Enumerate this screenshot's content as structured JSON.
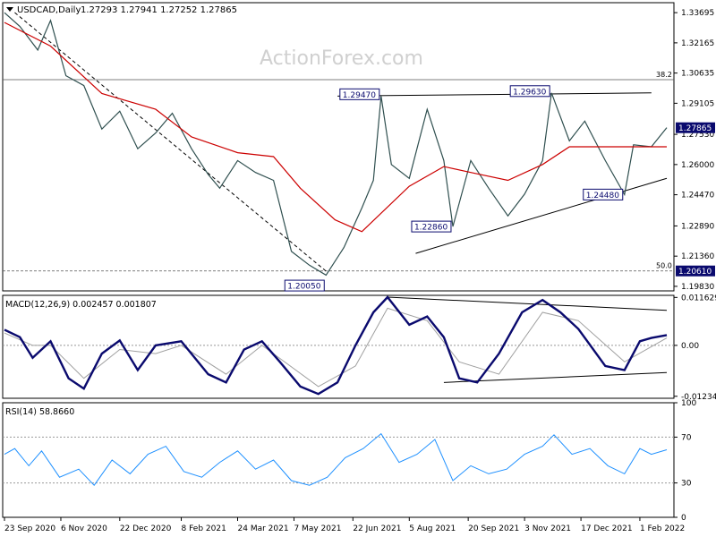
{
  "header": {
    "symbol": "USDCAD,Daily",
    "ohlc": "1.27293  1.27941  1.27252  1.27865"
  },
  "watermark": "ActionForex.com",
  "chart_data": [
    {
      "type": "candlestick",
      "symbol": "USDCAD",
      "timeframe": "Daily",
      "open": 1.27293,
      "high": 1.27941,
      "low": 1.27252,
      "close": 1.27865,
      "ylim": [
        1.196,
        1.342
      ],
      "yticks": [
        "1.33695",
        "1.32165",
        "1.30635",
        "1.29105",
        "1.27530",
        "1.26000",
        "1.24470",
        "1.22890",
        "1.21360",
        "1.19830"
      ],
      "yticks_values": [
        1.33695,
        1.32165,
        1.30635,
        1.29105,
        1.2753,
        1.26,
        1.2447,
        1.2289,
        1.2136,
        1.1983
      ],
      "fib_levels": [
        {
          "label": "38.2",
          "value": 1.303
        },
        {
          "label": "50.0",
          "value": 1.2061
        }
      ],
      "current_price_label": "1.27865",
      "current_price": 1.27865,
      "level_label": "1.20610",
      "level_value": 1.2061,
      "annotations": [
        {
          "label": "1.29470",
          "value": 1.2947,
          "date": "2021-07-14"
        },
        {
          "label": "1.29630",
          "value": 1.2963,
          "date": "2021-11-24"
        },
        {
          "label": "1.22860",
          "value": 1.2286,
          "date": "2021-09-08"
        },
        {
          "label": "1.24480",
          "value": 1.2448,
          "date": "2022-01-20"
        },
        {
          "label": "1.20050",
          "value": 1.2005,
          "date": "2021-06-01"
        }
      ],
      "close_path": [
        [
          "2020-09-23",
          1.3369
        ],
        [
          "2020-10-05",
          1.33
        ],
        [
          "2020-10-19",
          1.318
        ],
        [
          "2020-10-29",
          1.333
        ],
        [
          "2020-11-10",
          1.305
        ],
        [
          "2020-11-24",
          1.3
        ],
        [
          "2020-12-08",
          1.278
        ],
        [
          "2020-12-22",
          1.287
        ],
        [
          "2021-01-05",
          1.268
        ],
        [
          "2021-01-19",
          1.276
        ],
        [
          "2021-02-01",
          1.286
        ],
        [
          "2021-02-16",
          1.268
        ],
        [
          "2021-03-01",
          1.255
        ],
        [
          "2021-03-10",
          1.248
        ],
        [
          "2021-03-24",
          1.262
        ],
        [
          "2021-04-07",
          1.256
        ],
        [
          "2021-04-21",
          1.252
        ],
        [
          "2021-05-05",
          1.216
        ],
        [
          "2021-05-19",
          1.209
        ],
        [
          "2021-06-01",
          1.204
        ],
        [
          "2021-06-15",
          1.218
        ],
        [
          "2021-06-29",
          1.238
        ],
        [
          "2021-07-08",
          1.252
        ],
        [
          "2021-07-14",
          1.2947
        ],
        [
          "2021-07-22",
          1.26
        ],
        [
          "2021-08-05",
          1.253
        ],
        [
          "2021-08-19",
          1.288
        ],
        [
          "2021-09-01",
          1.262
        ],
        [
          "2021-09-08",
          1.2286
        ],
        [
          "2021-09-22",
          1.262
        ],
        [
          "2021-10-06",
          1.248
        ],
        [
          "2021-10-21",
          1.234
        ],
        [
          "2021-11-03",
          1.245
        ],
        [
          "2021-11-17",
          1.262
        ],
        [
          "2021-11-24",
          1.2963
        ],
        [
          "2021-12-08",
          1.272
        ],
        [
          "2021-12-20",
          1.282
        ],
        [
          "2022-01-05",
          1.262
        ],
        [
          "2022-01-20",
          1.2448
        ],
        [
          "2022-01-27",
          1.27
        ],
        [
          "2022-02-10",
          1.269
        ],
        [
          "2022-02-22",
          1.2787
        ]
      ],
      "ma_path": [
        [
          "2020-09-23",
          1.332
        ],
        [
          "2020-10-29",
          1.32
        ],
        [
          "2020-12-08",
          1.296
        ],
        [
          "2021-01-19",
          1.288
        ],
        [
          "2021-02-16",
          1.274
        ],
        [
          "2021-03-24",
          1.266
        ],
        [
          "2021-04-21",
          1.264
        ],
        [
          "2021-05-12",
          1.248
        ],
        [
          "2021-06-08",
          1.232
        ],
        [
          "2021-06-29",
          1.226
        ],
        [
          "2021-08-05",
          1.249
        ],
        [
          "2021-09-01",
          1.259
        ],
        [
          "2021-09-22",
          1.256
        ],
        [
          "2021-10-21",
          1.252
        ],
        [
          "2021-11-17",
          1.26
        ],
        [
          "2021-12-08",
          1.269
        ],
        [
          "2022-01-05",
          1.269
        ],
        [
          "2022-02-22",
          1.269
        ]
      ],
      "trendlines": [
        {
          "from": [
            "2020-10-01",
            1.337
          ],
          "to": [
            "2021-06-01",
            1.206
          ],
          "style": "dashed"
        },
        {
          "from": [
            "2021-06-10",
            1.2947
          ],
          "to": [
            "2022-02-10",
            1.2963
          ],
          "style": "solid"
        },
        {
          "from": [
            "2021-08-10",
            1.215
          ],
          "to": [
            "2022-02-22",
            1.253
          ],
          "style": "solid"
        }
      ]
    },
    {
      "type": "line",
      "title": "MACD(12,26,9) 0.002457 0.001807",
      "ylim": [
        -0.0124,
        0.0117
      ],
      "yticks": [
        "0.011629",
        "0.00",
        "-0.012348"
      ],
      "yticks_values": [
        0.011629,
        0.0,
        -0.012348
      ],
      "series": [
        {
          "name": "MACD",
          "values": [
            [
              "2020-09-23",
              0.0038
            ],
            [
              "2020-10-05",
              0.002
            ],
            [
              "2020-10-15",
              -0.003
            ],
            [
              "2020-10-29",
              0.001
            ],
            [
              "2020-11-12",
              -0.008
            ],
            [
              "2020-11-24",
              -0.0105
            ],
            [
              "2020-12-08",
              -0.002
            ],
            [
              "2020-12-22",
              0.0012
            ],
            [
              "2021-01-05",
              -0.006
            ],
            [
              "2021-01-19",
              0.0
            ],
            [
              "2021-02-08",
              0.001
            ],
            [
              "2021-03-01",
              -0.007
            ],
            [
              "2021-03-15",
              -0.009
            ],
            [
              "2021-03-29",
              -0.001
            ],
            [
              "2021-04-12",
              0.001
            ],
            [
              "2021-04-26",
              -0.004
            ],
            [
              "2021-05-12",
              -0.01
            ],
            [
              "2021-05-26",
              -0.0118
            ],
            [
              "2021-06-10",
              -0.009
            ],
            [
              "2021-06-24",
              0.0
            ],
            [
              "2021-07-08",
              0.008
            ],
            [
              "2021-07-19",
              0.0117
            ],
            [
              "2021-08-05",
              0.005
            ],
            [
              "2021-08-19",
              0.007
            ],
            [
              "2021-09-01",
              0.002
            ],
            [
              "2021-09-13",
              -0.008
            ],
            [
              "2021-09-27",
              -0.009
            ],
            [
              "2021-10-14",
              -0.002
            ],
            [
              "2021-11-01",
              0.008
            ],
            [
              "2021-11-17",
              0.011
            ],
            [
              "2021-12-01",
              0.008
            ],
            [
              "2021-12-15",
              0.004
            ],
            [
              "2022-01-05",
              -0.005
            ],
            [
              "2022-01-20",
              -0.006
            ],
            [
              "2022-02-01",
              0.001
            ],
            [
              "2022-02-10",
              0.0018
            ],
            [
              "2022-02-22",
              0.0025
            ]
          ]
        },
        {
          "name": "Signal",
          "values": [
            [
              "2020-09-23",
              0.003
            ],
            [
              "2020-10-15",
              0.0
            ],
            [
              "2020-10-29",
              0.0
            ],
            [
              "2020-11-24",
              -0.008
            ],
            [
              "2020-12-22",
              -0.001
            ],
            [
              "2021-01-19",
              -0.002
            ],
            [
              "2021-02-08",
              0.0
            ],
            [
              "2021-03-15",
              -0.007
            ],
            [
              "2021-04-12",
              0.0
            ],
            [
              "2021-05-26",
              -0.01
            ],
            [
              "2021-06-24",
              -0.005
            ],
            [
              "2021-07-19",
              0.009
            ],
            [
              "2021-08-19",
              0.006
            ],
            [
              "2021-09-13",
              -0.004
            ],
            [
              "2021-10-14",
              -0.007
            ],
            [
              "2021-11-17",
              0.008
            ],
            [
              "2021-12-15",
              0.006
            ],
            [
              "2022-01-20",
              -0.004
            ],
            [
              "2022-02-22",
              0.0018
            ]
          ]
        }
      ],
      "trendlines": [
        {
          "from": [
            "2021-07-19",
            0.0117
          ],
          "to": [
            "2022-02-22",
            0.0085
          ]
        },
        {
          "from": [
            "2021-09-01",
            -0.009
          ],
          "to": [
            "2022-02-22",
            -0.0066
          ]
        }
      ]
    },
    {
      "type": "line",
      "title": "RSI(14) 58.8660",
      "ylim": [
        0,
        100
      ],
      "yticks": [
        "100",
        "70",
        "30",
        "0"
      ],
      "yticks_values": [
        100,
        70,
        30,
        0
      ],
      "levels": [
        70,
        30
      ],
      "series": [
        {
          "name": "RSI",
          "values": [
            [
              "2020-09-23",
              55
            ],
            [
              "2020-10-01",
              60
            ],
            [
              "2020-10-12",
              45
            ],
            [
              "2020-10-22",
              58
            ],
            [
              "2020-11-05",
              35
            ],
            [
              "2020-11-20",
              42
            ],
            [
              "2020-12-02",
              28
            ],
            [
              "2020-12-16",
              50
            ],
            [
              "2020-12-30",
              38
            ],
            [
              "2021-01-13",
              55
            ],
            [
              "2021-01-27",
              62
            ],
            [
              "2021-02-10",
              40
            ],
            [
              "2021-02-24",
              35
            ],
            [
              "2021-03-10",
              48
            ],
            [
              "2021-03-24",
              58
            ],
            [
              "2021-04-07",
              42
            ],
            [
              "2021-04-21",
              50
            ],
            [
              "2021-05-05",
              32
            ],
            [
              "2021-05-19",
              28
            ],
            [
              "2021-06-02",
              35
            ],
            [
              "2021-06-16",
              52
            ],
            [
              "2021-06-30",
              60
            ],
            [
              "2021-07-14",
              73
            ],
            [
              "2021-07-28",
              48
            ],
            [
              "2021-08-11",
              55
            ],
            [
              "2021-08-25",
              68
            ],
            [
              "2021-09-08",
              32
            ],
            [
              "2021-09-22",
              45
            ],
            [
              "2021-10-06",
              38
            ],
            [
              "2021-10-20",
              42
            ],
            [
              "2021-11-03",
              55
            ],
            [
              "2021-11-17",
              62
            ],
            [
              "2021-11-26",
              72
            ],
            [
              "2021-12-10",
              55
            ],
            [
              "2021-12-24",
              60
            ],
            [
              "2022-01-07",
              45
            ],
            [
              "2022-01-20",
              38
            ],
            [
              "2022-02-01",
              60
            ],
            [
              "2022-02-10",
              55
            ],
            [
              "2022-02-22",
              59
            ]
          ]
        }
      ]
    }
  ],
  "x_axis": {
    "ticks": [
      {
        "label": "23 Sep 2020",
        "date": "2020-09-23"
      },
      {
        "label": "6 Nov 2020",
        "date": "2020-11-06"
      },
      {
        "label": "22 Dec 2020",
        "date": "2020-12-22"
      },
      {
        "label": "8 Feb 2021",
        "date": "2021-02-08"
      },
      {
        "label": "24 Mar 2021",
        "date": "2021-03-24"
      },
      {
        "label": "7 May 2021",
        "date": "2021-05-07"
      },
      {
        "label": "22 Jun 2021",
        "date": "2021-06-22"
      },
      {
        "label": "5 Aug 2021",
        "date": "2021-08-05"
      },
      {
        "label": "20 Sep 2021",
        "date": "2021-09-20"
      },
      {
        "label": "3 Nov 2021",
        "date": "2021-11-03"
      },
      {
        "label": "17 Dec 2021",
        "date": "2021-12-17"
      },
      {
        "label": "1 Feb 2022",
        "date": "2022-02-01"
      }
    ]
  },
  "colors": {
    "price": "#2f4f4f",
    "ma": "#cc0000",
    "macd": "#0a0a6e",
    "signal": "#a0a0a0",
    "rsi": "#1e90ff",
    "trend": "#000000",
    "label_box": "#0a0a6e",
    "current_box": "#0a0a6e"
  }
}
